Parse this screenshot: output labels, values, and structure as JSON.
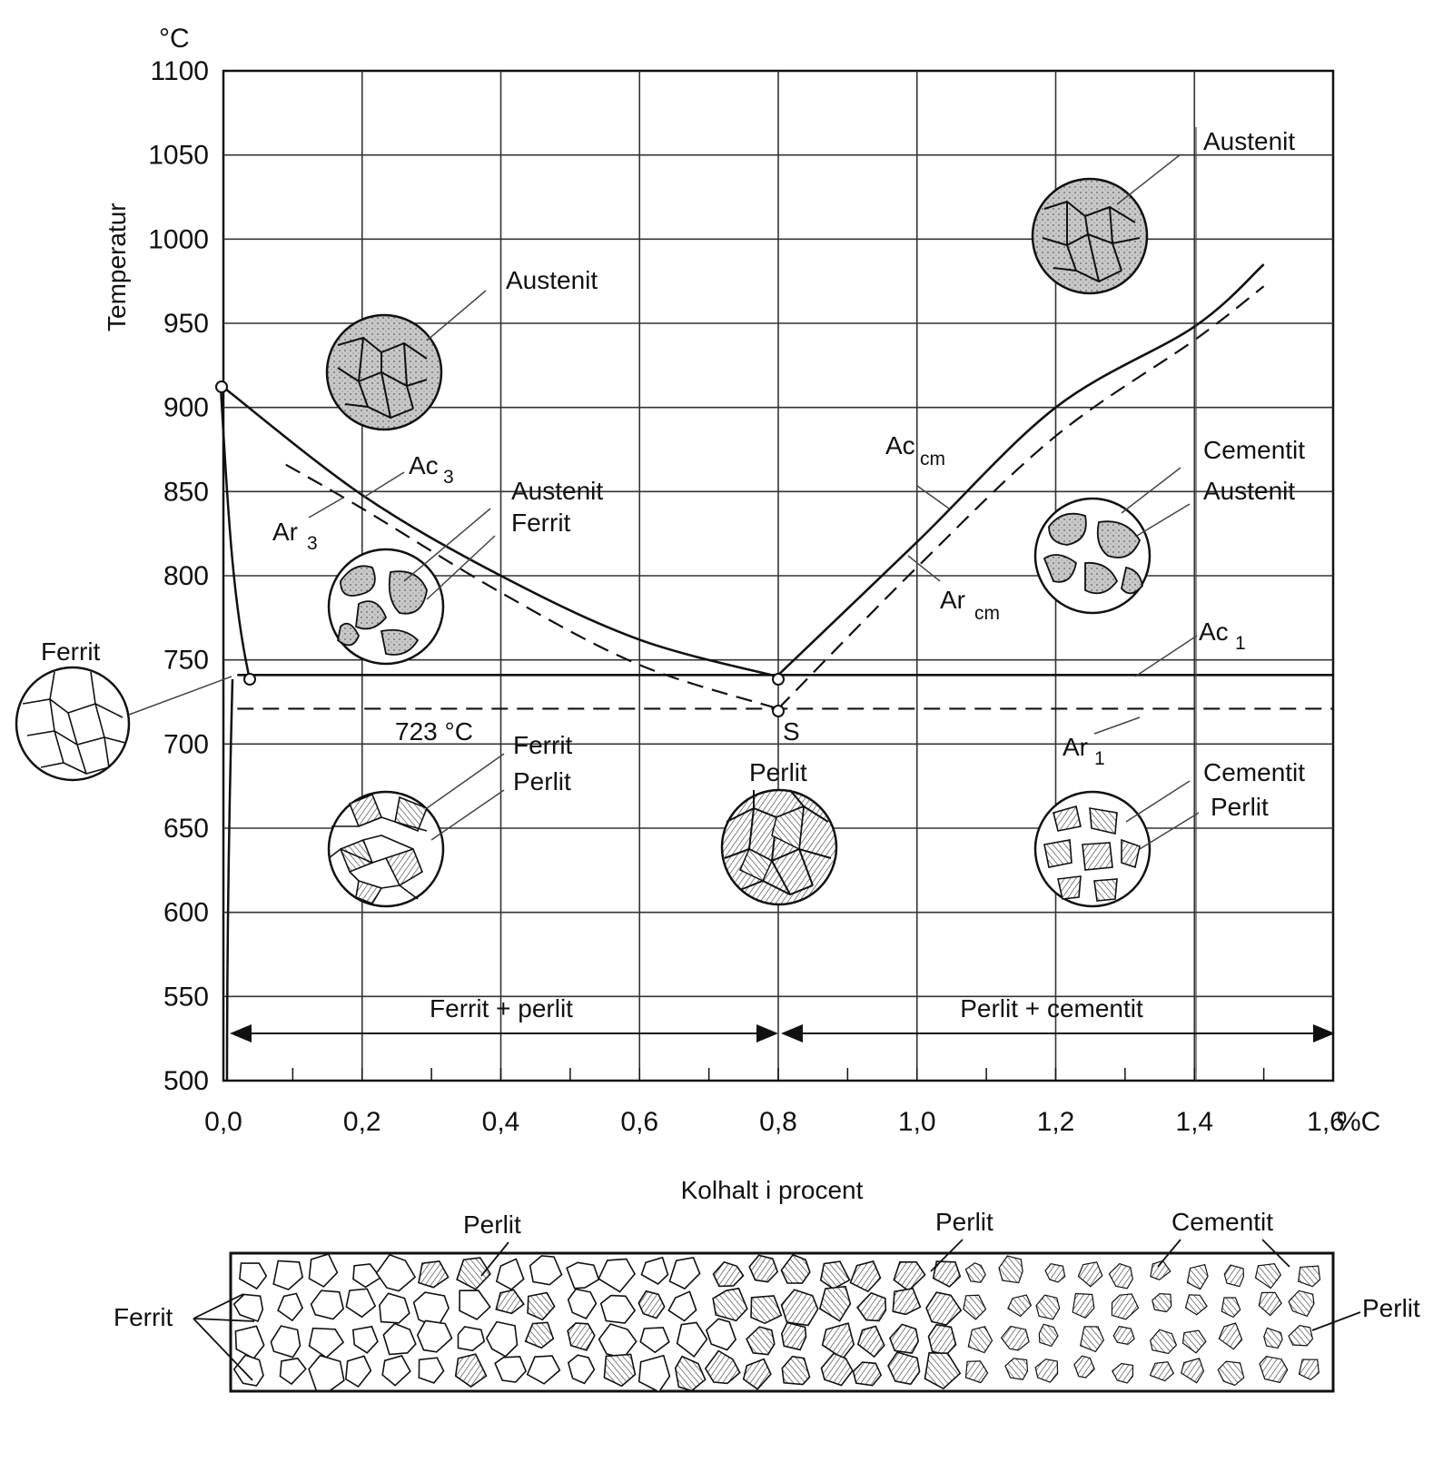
{
  "axes": {
    "y_unit": "°C",
    "y_label": "Temperatur",
    "y_ticks": [
      "1100",
      "1050",
      "1000",
      "950",
      "900",
      "850",
      "800",
      "750",
      "700",
      "650",
      "600",
      "550",
      "500"
    ],
    "x_ticks": [
      "0,0",
      "0,2",
      "0,4",
      "0,6",
      "0,8",
      "1,0",
      "1,2",
      "1,4",
      "1,6"
    ],
    "x_unit": "%C",
    "x_label": "Kolhalt i procent",
    "x_range": [
      0,
      1.6
    ],
    "y_range": [
      500,
      1100
    ]
  },
  "lines": {
    "ac3": {
      "base": "Ac",
      "sub": "3"
    },
    "ar3": {
      "base": "Ar",
      "sub": "3"
    },
    "accm": {
      "base": "Ac",
      "sub": "cm"
    },
    "arcm": {
      "base": "Ar",
      "sub": "cm"
    },
    "ac1": {
      "base": "Ac",
      "sub": "1"
    },
    "ar1": {
      "base": "Ar",
      "sub": "1"
    },
    "eutectoid_temp": "723 °C",
    "eutectoid_point": "S"
  },
  "curves": {
    "ac3": [
      [
        0,
        912
      ],
      [
        0.2,
        848
      ],
      [
        0.4,
        800
      ],
      [
        0.6,
        762
      ],
      [
        0.8,
        740
      ]
    ],
    "ar3": [
      [
        0.09,
        866
      ],
      [
        0.2,
        840
      ],
      [
        0.4,
        790
      ],
      [
        0.6,
        747
      ],
      [
        0.8,
        721
      ]
    ],
    "accm": [
      [
        0.8,
        741
      ],
      [
        1.0,
        820
      ],
      [
        1.2,
        900
      ],
      [
        1.4,
        948
      ],
      [
        1.5,
        985
      ]
    ],
    "arcm": [
      [
        0.8,
        721
      ],
      [
        1.0,
        805
      ],
      [
        1.2,
        883
      ],
      [
        1.4,
        940
      ],
      [
        1.5,
        972
      ]
    ],
    "ac1": [
      [
        0.02,
        741
      ],
      [
        1.6,
        741
      ]
    ],
    "ar1": [
      [
        0.02,
        721
      ],
      [
        1.6,
        721
      ]
    ]
  },
  "phase_labels": {
    "austenit_left": "Austenit",
    "austenit_ferrit_a": "Austenit",
    "austenit_ferrit_b": "Ferrit",
    "ferrit_side": "Ferrit",
    "ferrit_perlit_a": "Ferrit",
    "ferrit_perlit_b": "Perlit",
    "perlit_mid": "Perlit",
    "austenit_right": "Austenit",
    "cementit_austenit_a": "Cementit",
    "cementit_austenit_b": "Austenit",
    "cementit_perlit_a": "Cementit",
    "cementit_perlit_b": "Perlit"
  },
  "regions": {
    "left": "Ferrit + perlit",
    "right": "Perlit + cementit"
  },
  "strip": {
    "ferrit": "Ferrit",
    "perlit_a": "Perlit",
    "perlit_b": "Perlit",
    "cementit": "Cementit",
    "perlit_right": "Perlit"
  }
}
